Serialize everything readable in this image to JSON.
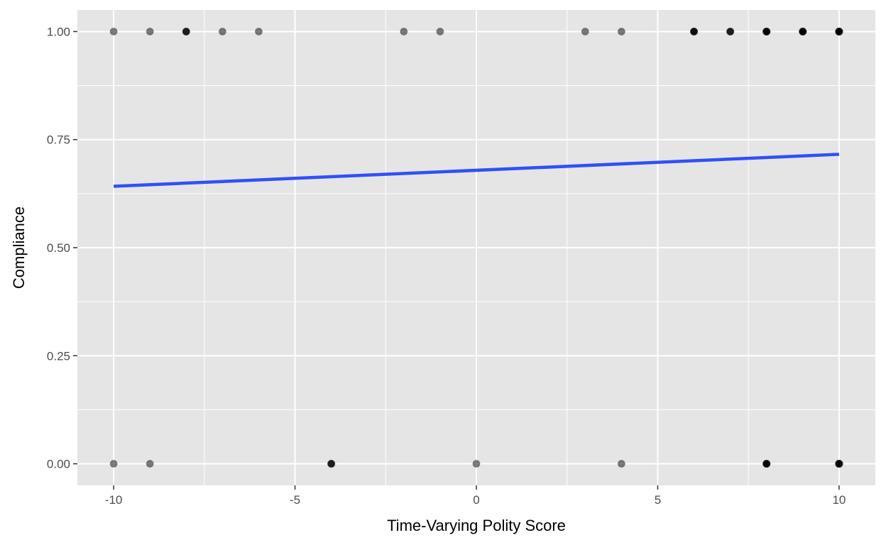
{
  "chart_data": {
    "type": "scatter",
    "title": "",
    "xlabel": "Time-Varying Polity Score",
    "ylabel": "Compliance",
    "xlim": [
      -11,
      11
    ],
    "ylim": [
      -0.05,
      1.05
    ],
    "x_ticks": [
      -10,
      -5,
      0,
      5,
      10
    ],
    "x_tick_labels": [
      "-10",
      "-5",
      "0",
      "5",
      "10"
    ],
    "y_ticks": [
      0,
      0.25,
      0.5,
      0.75,
      1.0
    ],
    "y_tick_labels": [
      "0.00",
      "0.25",
      "0.50",
      "0.75",
      "1.00"
    ],
    "grid": true,
    "panel_color": "#e5e5e5",
    "grid_color": "#ffffff",
    "points": [
      {
        "x": -10,
        "y": 1,
        "n": 1
      },
      {
        "x": -9,
        "y": 1,
        "n": 1
      },
      {
        "x": -8,
        "y": 1,
        "n": 3
      },
      {
        "x": -7,
        "y": 1,
        "n": 1
      },
      {
        "x": -6,
        "y": 1,
        "n": 1
      },
      {
        "x": -2,
        "y": 1,
        "n": 1
      },
      {
        "x": -1,
        "y": 1,
        "n": 1
      },
      {
        "x": 3,
        "y": 1,
        "n": 1
      },
      {
        "x": 4,
        "y": 1,
        "n": 1
      },
      {
        "x": 6,
        "y": 1,
        "n": 4
      },
      {
        "x": 7,
        "y": 1,
        "n": 3
      },
      {
        "x": 8,
        "y": 1,
        "n": 6
      },
      {
        "x": 9,
        "y": 1,
        "n": 6
      },
      {
        "x": 10,
        "y": 1,
        "n": 10
      },
      {
        "x": -10,
        "y": 0,
        "n": 1
      },
      {
        "x": -9,
        "y": 0,
        "n": 1
      },
      {
        "x": -4,
        "y": 0,
        "n": 3
      },
      {
        "x": 0,
        "y": 0,
        "n": 1
      },
      {
        "x": 4,
        "y": 0,
        "n": 1
      },
      {
        "x": 8,
        "y": 0,
        "n": 5
      },
      {
        "x": 10,
        "y": 0,
        "n": 10
      }
    ],
    "point_color": "#000000",
    "point_alpha": 0.5,
    "fit_line": {
      "x": [
        -10,
        10
      ],
      "y": [
        0.642,
        0.716
      ],
      "color": "#3050f8"
    }
  }
}
